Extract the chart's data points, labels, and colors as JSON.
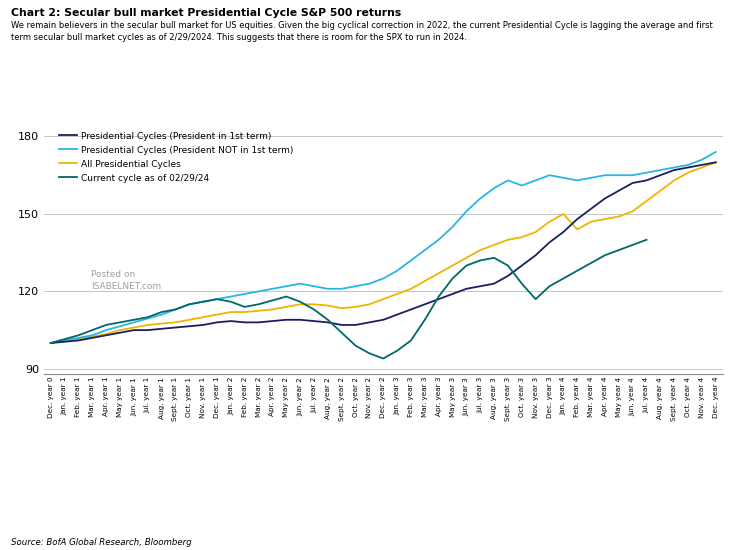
{
  "title": "Chart 2: Secular bull market Presidential Cycle S&P 500 returns",
  "subtitle": "We remain believers in the secular bull market for US equities. Given the big cyclical correction in 2022, the current Presidential Cycle is lagging the average and first\nterm secular bull market cycles as of 2/29/2024. This suggests that there is room for the SPX to run in 2024.",
  "source": "Source: BofA Global Research, Bloomberg",
  "watermark": "Posted on\nISABELNET.com",
  "ylim": [
    88,
    186
  ],
  "yticks": [
    90,
    120,
    150,
    180
  ],
  "colors": {
    "first_term": "#1b1f5e",
    "not_first_term": "#29b5e8",
    "all_cycles": "#f0b400",
    "current": "#006868"
  },
  "legend": [
    "Presidential Cycles (President in 1st term)",
    "Presidential Cycles (President NOT in 1st term)",
    "All Presidential Cycles",
    "Current cycle as of 02/29/24"
  ],
  "x_labels": [
    "Dec. year 0",
    "Jan. year 1",
    "Feb. year 1",
    "Mar. year 1",
    "Apr. year 1",
    "May year 1",
    "Jun. year 1",
    "Jul. year 1",
    "Aug. year 1",
    "Sept. year 1",
    "Oct. year 1",
    "Nov. year 1",
    "Dec. year 1",
    "Jan. year 2",
    "Feb. year 2",
    "Mar. year 2",
    "Apr. year 2",
    "May year 2",
    "Jun. year 2",
    "Jul. year 2",
    "Aug. year 2",
    "Sept. year 2",
    "Oct. year 2",
    "Nov. year 2",
    "Dec. year 2",
    "Jan. year 3",
    "Feb. year 3",
    "Mar. year 3",
    "Apr. year 3",
    "May year 3",
    "Jun. year 3",
    "Jul. year 3",
    "Aug. year 3",
    "Sept. year 3",
    "Oct. year 3",
    "Nov. year 3",
    "Dec. year 3",
    "Jan. year 4",
    "Feb. year 4",
    "Mar. year 4",
    "Apr. year 4",
    "May year 4",
    "Jun. year 4",
    "Jul. year 4",
    "Aug. year 4",
    "Sept. year 4",
    "Oct. year 4",
    "Nov. year 4",
    "Dec. year 4"
  ],
  "series_first_term": [
    100,
    100.5,
    101,
    102,
    103,
    104,
    105,
    105,
    105.5,
    106,
    106.5,
    107,
    108,
    108.5,
    108,
    108,
    108.5,
    109,
    109,
    108.5,
    108,
    107,
    107,
    108,
    109,
    111,
    113,
    115,
    117,
    119,
    121,
    122,
    123,
    126,
    130,
    134,
    139,
    143,
    148,
    152,
    156,
    159,
    162,
    163,
    165,
    167,
    168,
    169,
    170
  ],
  "series_not_first_term": [
    100,
    101,
    102,
    103,
    105,
    106.5,
    108,
    109.5,
    111,
    113,
    115,
    116,
    117,
    118,
    119,
    120,
    121,
    122,
    123,
    122,
    121,
    121,
    122,
    123,
    125,
    128,
    132,
    136,
    140,
    145,
    151,
    156,
    160,
    163,
    161,
    163,
    165,
    164,
    163,
    164,
    165,
    165,
    165,
    166,
    167,
    168,
    169,
    171,
    174
  ],
  "series_all_cycles": [
    100,
    101,
    101.5,
    102.5,
    103.5,
    105,
    106,
    107,
    107.5,
    108,
    109,
    110,
    111,
    112,
    112,
    112.5,
    113,
    114,
    115,
    115,
    114.5,
    113.5,
    114,
    115,
    117,
    119,
    121,
    124,
    127,
    130,
    133,
    136,
    138,
    140,
    141,
    143,
    147,
    150,
    144,
    147,
    148,
    149,
    151,
    155,
    159,
    163,
    166,
    168,
    170
  ],
  "series_current": [
    100,
    101.5,
    103,
    105,
    107,
    108,
    109,
    110,
    112,
    113,
    115,
    116,
    117,
    116,
    114,
    115,
    116.5,
    118,
    116,
    113,
    109,
    104,
    99,
    96,
    94,
    97,
    101,
    109,
    118,
    125,
    130,
    132,
    133,
    130,
    123,
    117,
    122,
    125,
    128,
    131,
    134,
    136,
    138,
    140,
    null,
    null,
    null,
    null,
    null
  ]
}
